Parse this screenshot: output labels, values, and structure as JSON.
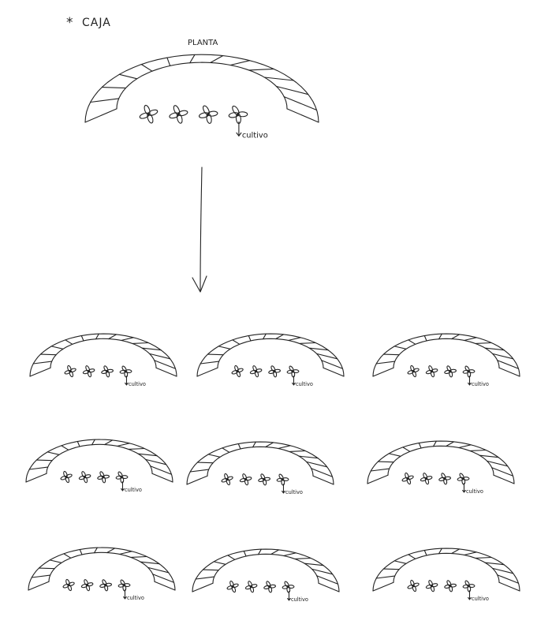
{
  "note": {
    "mark": "*",
    "text": "CAJA"
  },
  "main_unit": {
    "title": "PLANTA",
    "flowers": 4,
    "annotation": "cultivo"
  },
  "arrow": {
    "direction": "down"
  },
  "grid": {
    "rows": 3,
    "cols": 3,
    "unit_annotation": "cultivo",
    "flowers_per_unit": 4
  }
}
